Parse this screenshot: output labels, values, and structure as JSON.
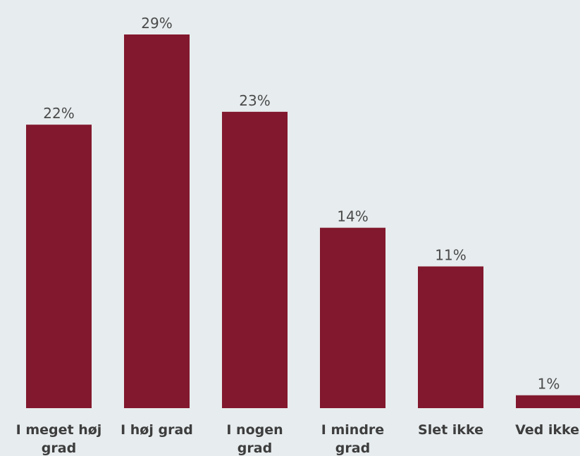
{
  "colors": {
    "background": "#e7ecee",
    "bar": "#82182d",
    "data_label": "#4a4a4a",
    "category_label": "#3d3d3d"
  },
  "chart_data": {
    "type": "bar",
    "categories": [
      [
        "I meget høj",
        "grad"
      ],
      [
        "I høj grad"
      ],
      [
        "I nogen",
        "grad"
      ],
      [
        "I mindre",
        "grad"
      ],
      [
        "Slet ikke"
      ],
      [
        "Ved ikke"
      ]
    ],
    "values": [
      22,
      29,
      23,
      14,
      11,
      1
    ],
    "data_labels": [
      "22%",
      "29%",
      "23%",
      "14%",
      "11%",
      "1%"
    ],
    "value_unit": "%",
    "ylim": [
      0,
      29
    ],
    "grid": false,
    "legend": "none",
    "axes_visible": false
  }
}
